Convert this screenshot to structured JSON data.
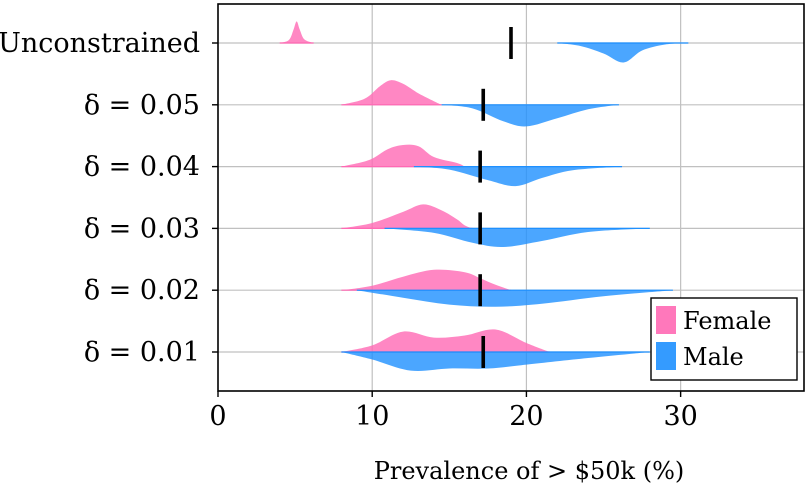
{
  "chart_data": {
    "type": "violin",
    "xlabel": "Prevalence of > $50k (%)",
    "xlim": [
      0,
      38
    ],
    "xticks": [
      0,
      10,
      20,
      30
    ],
    "grid": true,
    "legend_position": "bottom-right",
    "categories": [
      "Unconstrained",
      "δ = 0.05",
      "δ = 0.04",
      "δ = 0.03",
      "δ = 0.02",
      "δ = 0.01"
    ],
    "series": [
      {
        "name": "Female",
        "color": "#ff69b4",
        "side": "upper",
        "distributions": [
          [
            [
              4.0,
              0
            ],
            [
              4.6,
              0.1
            ],
            [
              4.9,
              0.45
            ],
            [
              5.1,
              0.72
            ],
            [
              5.3,
              0.45
            ],
            [
              5.6,
              0.12
            ],
            [
              6.2,
              0
            ]
          ],
          [
            [
              8.0,
              0
            ],
            [
              9.5,
              0.2
            ],
            [
              10.5,
              0.62
            ],
            [
              11.2,
              0.82
            ],
            [
              12.0,
              0.7
            ],
            [
              13.0,
              0.38
            ],
            [
              14.0,
              0.12
            ],
            [
              14.5,
              0
            ]
          ],
          [
            [
              8.0,
              0
            ],
            [
              9.8,
              0.22
            ],
            [
              11.0,
              0.58
            ],
            [
              12.0,
              0.72
            ],
            [
              13.0,
              0.68
            ],
            [
              14.0,
              0.32
            ],
            [
              15.5,
              0.12
            ],
            [
              16.0,
              0
            ]
          ],
          [
            [
              8.0,
              0
            ],
            [
              10.0,
              0.18
            ],
            [
              12.0,
              0.55
            ],
            [
              13.3,
              0.8
            ],
            [
              14.5,
              0.6
            ],
            [
              15.5,
              0.3
            ],
            [
              16.0,
              0.1
            ],
            [
              16.5,
              0
            ]
          ],
          [
            [
              8.0,
              0
            ],
            [
              10.0,
              0.15
            ],
            [
              12.0,
              0.45
            ],
            [
              14.0,
              0.68
            ],
            [
              16.0,
              0.6
            ],
            [
              17.0,
              0.4
            ],
            [
              18.0,
              0.18
            ],
            [
              19.0,
              0
            ]
          ],
          [
            [
              8.0,
              0
            ],
            [
              10.0,
              0.22
            ],
            [
              12.0,
              0.68
            ],
            [
              14.0,
              0.48
            ],
            [
              16.0,
              0.55
            ],
            [
              18.0,
              0.75
            ],
            [
              20.0,
              0.3
            ],
            [
              21.5,
              0
            ]
          ]
        ]
      },
      {
        "name": "Male",
        "color": "#1e90ff",
        "side": "lower",
        "distributions": [
          [
            [
              22.0,
              0
            ],
            [
              23.5,
              0.1
            ],
            [
              25.0,
              0.35
            ],
            [
              26.3,
              0.65
            ],
            [
              27.5,
              0.25
            ],
            [
              29.0,
              0.05
            ],
            [
              30.5,
              0
            ]
          ],
          [
            [
              14.5,
              0
            ],
            [
              16.5,
              0.12
            ],
            [
              18.5,
              0.55
            ],
            [
              20.0,
              0.72
            ],
            [
              22.0,
              0.45
            ],
            [
              24.0,
              0.15
            ],
            [
              26.0,
              0
            ]
          ],
          [
            [
              12.7,
              0
            ],
            [
              15.0,
              0.1
            ],
            [
              17.5,
              0.45
            ],
            [
              19.3,
              0.65
            ],
            [
              21.0,
              0.38
            ],
            [
              23.0,
              0.12
            ],
            [
              26.2,
              0
            ]
          ],
          [
            [
              10.8,
              0
            ],
            [
              14.0,
              0.15
            ],
            [
              16.5,
              0.48
            ],
            [
              18.5,
              0.62
            ],
            [
              21.0,
              0.42
            ],
            [
              24.0,
              0.12
            ],
            [
              28.0,
              0
            ]
          ],
          [
            [
              9.0,
              0
            ],
            [
              12.0,
              0.25
            ],
            [
              15.0,
              0.48
            ],
            [
              18.0,
              0.55
            ],
            [
              21.0,
              0.45
            ],
            [
              25.0,
              0.2
            ],
            [
              29.5,
              0
            ]
          ],
          [
            [
              8.0,
              0
            ],
            [
              10.0,
              0.25
            ],
            [
              12.5,
              0.62
            ],
            [
              15.0,
              0.55
            ],
            [
              17.5,
              0.55
            ],
            [
              20.0,
              0.42
            ],
            [
              24.0,
              0.2
            ],
            [
              28.0,
              0
            ]
          ]
        ]
      }
    ],
    "thresholds": [
      19.0,
      17.2,
      17.0,
      17.0,
      17.0,
      17.2
    ],
    "threshold_color": "#000000",
    "grid_color": "#c0c0c0",
    "legend": [
      {
        "label": "Female",
        "color": "#ff69b4"
      },
      {
        "label": "Male",
        "color": "#1e90ff"
      }
    ]
  }
}
